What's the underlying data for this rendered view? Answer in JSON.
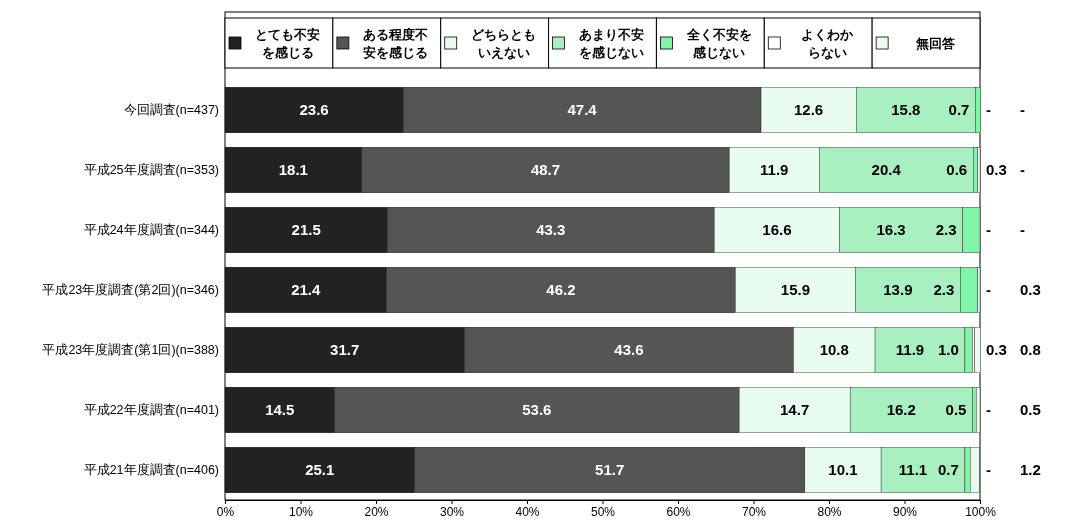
{
  "chart_data": {
    "type": "bar",
    "orientation": "horizontal",
    "stacked": true,
    "legend": "top",
    "grid": false,
    "categories": [
      "今回調査(n=437)",
      "平成25年度調査(n=353)",
      "平成24年度調査(n=344)",
      "平成23年度調査(第2回)(n=346)",
      "平成23年度調査(第1回)(n=388)",
      "平成22年度調査(n=401)",
      "平成21年度調査(n=406)"
    ],
    "xlim": [
      0,
      100
    ],
    "xticks": [
      {
        "value": 0,
        "label": "0%"
      },
      {
        "value": 10,
        "label": "10%"
      },
      {
        "value": 20,
        "label": "20%"
      },
      {
        "value": 30,
        "label": "30%"
      },
      {
        "value": 40,
        "label": "40%"
      },
      {
        "value": 50,
        "label": "50%"
      },
      {
        "value": 60,
        "label": "60%"
      },
      {
        "value": 70,
        "label": "70%"
      },
      {
        "value": 80,
        "label": "80%"
      },
      {
        "value": 90,
        "label": "90%"
      },
      {
        "value": 100,
        "label": "100%"
      }
    ],
    "series": [
      {
        "name": "とても不安を感じる",
        "color": "#222222",
        "values": [
          23.6,
          18.1,
          21.5,
          21.4,
          31.7,
          14.5,
          25.1
        ],
        "value_labels": [
          "23.6",
          "18.1",
          "21.5",
          "21.4",
          "31.7",
          "14.5",
          "25.1"
        ]
      },
      {
        "name": "ある程度不安を感じる",
        "color": "#555555",
        "values": [
          47.4,
          48.7,
          43.3,
          46.2,
          43.6,
          53.6,
          51.7
        ],
        "value_labels": [
          "47.4",
          "48.7",
          "43.3",
          "46.2",
          "43.6",
          "53.6",
          "51.7"
        ]
      },
      {
        "name": "どちらともいえない",
        "color": "#e8fdf0",
        "values": [
          12.6,
          11.9,
          16.6,
          15.9,
          10.8,
          14.7,
          10.1
        ],
        "value_labels": [
          "12.6",
          "11.9",
          "16.6",
          "15.9",
          "10.8",
          "14.7",
          "10.1"
        ]
      },
      {
        "name": "あまり不安を感じない",
        "color": "#a8f0c0",
        "values": [
          15.8,
          20.4,
          16.3,
          13.9,
          11.9,
          16.2,
          11.1
        ],
        "value_labels": [
          "15.8",
          "20.4",
          "16.3",
          "13.9",
          "11.9",
          "16.2",
          "11.1"
        ]
      },
      {
        "name": "全く不安を感じない",
        "color": "#80f5a8",
        "values": [
          0.7,
          0.6,
          2.3,
          2.3,
          1.0,
          0.5,
          0.7
        ],
        "value_labels": [
          "0.7",
          "0.6",
          "2.3",
          "2.3",
          "1.0",
          "0.5",
          "0.7"
        ]
      },
      {
        "name": "よくわからない",
        "color": "#ffffff",
        "values": [
          0,
          0.3,
          0,
          0,
          0.3,
          0,
          0
        ],
        "value_labels": [
          "-",
          "0.3",
          "-",
          "-",
          "0.3",
          "-",
          "-"
        ]
      },
      {
        "name": "無回答",
        "color": "#e8fdf0",
        "values": [
          0,
          0,
          0,
          0.3,
          0.8,
          0.5,
          1.2
        ],
        "value_labels": [
          "-",
          "-",
          "-",
          "0.3",
          "0.8",
          "0.5",
          "1.2"
        ]
      }
    ]
  }
}
